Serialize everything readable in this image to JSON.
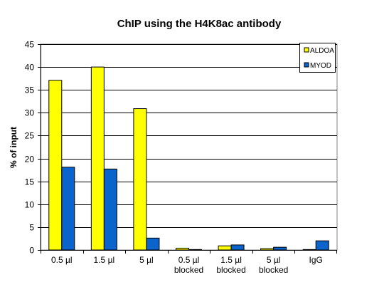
{
  "chart_data": {
    "type": "bar",
    "title": "ChIP using the H4K8ac antibody",
    "xlabel": "",
    "ylabel": "% of input",
    "ylim": [
      0,
      45
    ],
    "yticks": [
      0,
      5,
      10,
      15,
      20,
      25,
      30,
      35,
      40,
      45
    ],
    "grid": true,
    "legend_position": "top-right",
    "categories": [
      [
        "0.5 µl"
      ],
      [
        "1.5 µl"
      ],
      [
        "5 µl"
      ],
      [
        "0.5 µl",
        "blocked"
      ],
      [
        "1.5 µl",
        "blocked"
      ],
      [
        "5 µl",
        "blocked"
      ],
      [
        "IgG"
      ]
    ],
    "series": [
      {
        "name": "ALDOA",
        "color": "#ffff00",
        "values": [
          37.1,
          40.0,
          30.9,
          0.4,
          0.9,
          0.3,
          0.1
        ]
      },
      {
        "name": "MYOD",
        "color": "#0a64cc",
        "values": [
          18.1,
          17.7,
          2.6,
          0.1,
          1.1,
          0.6,
          2.0
        ]
      }
    ]
  }
}
